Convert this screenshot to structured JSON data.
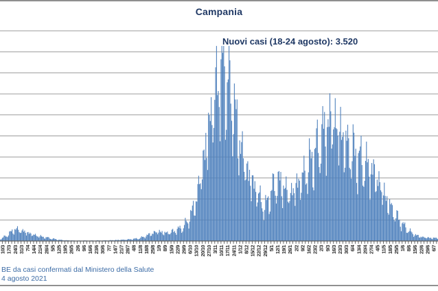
{
  "header": {
    "title": "Campania"
  },
  "annotation": {
    "text": "Nuovi casi (18-24 agosto): 3.520"
  },
  "footer": {
    "line1": "BE da casi confermati dal Ministero della Salute",
    "line2": "4 agosto 2021"
  },
  "colors": {
    "bar": "#4f81bd",
    "title_text": "#1f3864",
    "annotation_text": "#1f3864",
    "footer_text": "#3b6ba5",
    "gridline": "#9b9b9b",
    "axis_line": "#595959",
    "tick_label": "#2b2b2b",
    "divider": "#8f8f8f",
    "background": "#ffffff"
  },
  "chart_data": {
    "type": "bar",
    "title": "Campania",
    "annotation": "Nuovi casi (18-24 agosto): 3.520",
    "xlabel": "",
    "ylabel": "",
    "ylim": [
      0,
      5000
    ],
    "gridline_step": 500,
    "grid": true,
    "legend": "none",
    "bars": "daily new cases (one bar per day)",
    "peak_value_estimate": 4630,
    "x_tick_labels": [
      "3/3",
      "10/3",
      "17/3",
      "24/3",
      "31/3",
      "7/4",
      "14/4",
      "21/4",
      "28/4",
      "5/5",
      "12/5",
      "19/5",
      "26/5",
      "2/6",
      "9/6",
      "16/6",
      "23/6",
      "30/6",
      "7/7",
      "14/7",
      "21/7",
      "28/7",
      "4/8",
      "11/8",
      "18/8",
      "25/8",
      "1/9",
      "8/9",
      "15/9",
      "22/9",
      "29/9",
      "6/10",
      "13/10",
      "20/10",
      "27/10",
      "3/11",
      "10/11",
      "17/11",
      "24/11",
      "1/12",
      "8/12",
      "15/12",
      "22/12",
      "29/12",
      "5/1",
      "12/1",
      "19/1",
      "26/1",
      "2/2",
      "9/2",
      "16/2",
      "23/2",
      "2/3",
      "9/3",
      "16/3",
      "23/3",
      "30/3",
      "6/4",
      "13/4",
      "20/4",
      "27/4",
      "4/5",
      "11/5",
      "18/5",
      "25/5",
      "1/6",
      "8/6",
      "15/6",
      "22/6",
      "29/6",
      "6/7"
    ],
    "weekly_estimated_values": [
      20,
      70,
      160,
      280,
      250,
      200,
      150,
      110,
      85,
      55,
      30,
      18,
      14,
      10,
      12,
      10,
      14,
      12,
      16,
      22,
      28,
      35,
      48,
      65,
      120,
      185,
      230,
      190,
      210,
      265,
      330,
      550,
      950,
      1750,
      2650,
      3450,
      4150,
      3850,
      3200,
      2350,
      1750,
      1400,
      1100,
      750,
      1150,
      1400,
      1300,
      1100,
      1300,
      1500,
      1750,
      2050,
      2400,
      2750,
      2900,
      2600,
      2300,
      2100,
      1950,
      1800,
      1700,
      1500,
      1150,
      850,
      600,
      400,
      250,
      150,
      100,
      80,
      70
    ]
  }
}
